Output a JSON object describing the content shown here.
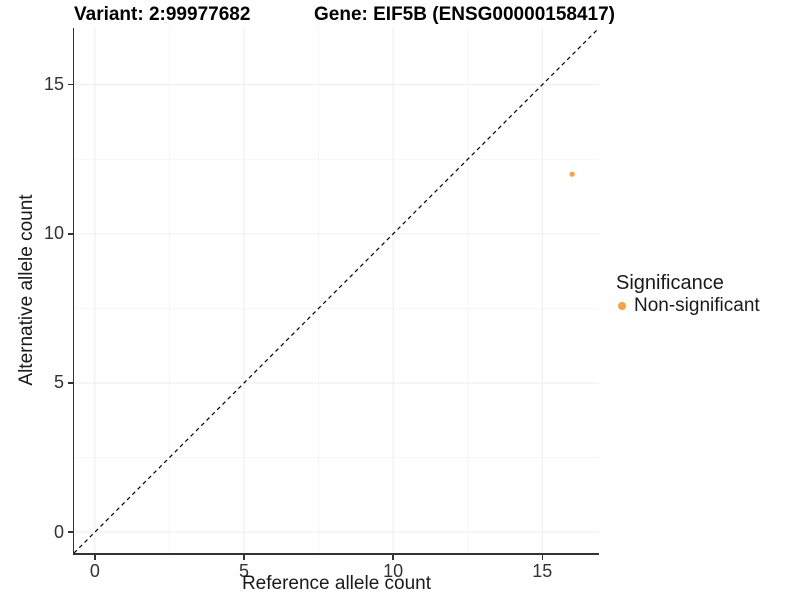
{
  "chart_data": {
    "type": "scatter",
    "titles": {
      "variant": "Variant: 2:99977682",
      "gene": "Gene: EIF5B (ENSG00000158417)"
    },
    "xlabel": "Reference allele count",
    "ylabel": "Alternative allele count",
    "xlim": [
      -0.7,
      16.9
    ],
    "ylim": [
      -0.7,
      16.9
    ],
    "x_major_ticks": [
      0,
      5,
      10,
      15
    ],
    "y_major_ticks": [
      0,
      5,
      10,
      15
    ],
    "x_minor_ticks": [
      2.5,
      7.5,
      12.5
    ],
    "y_minor_ticks": [
      2.5,
      7.5,
      12.5
    ],
    "grid": "major+minor",
    "identity_line": {
      "description": "y = x dashed reference line",
      "style": "dashed",
      "color": "#000000"
    },
    "series": [
      {
        "name": "Non-significant",
        "color": "#F9A03F",
        "points": [
          {
            "x": 16,
            "y": 12
          }
        ]
      }
    ],
    "legend": {
      "position": "right",
      "title": "Significance",
      "entries": [
        {
          "label": "Non-significant",
          "color": "#F9A03F"
        }
      ]
    },
    "colors": {
      "axis": "#333333",
      "tick_label": "#333333",
      "grid_major": "#ededed",
      "grid_minor": "#f5f5f5",
      "background": "#ffffff"
    }
  }
}
